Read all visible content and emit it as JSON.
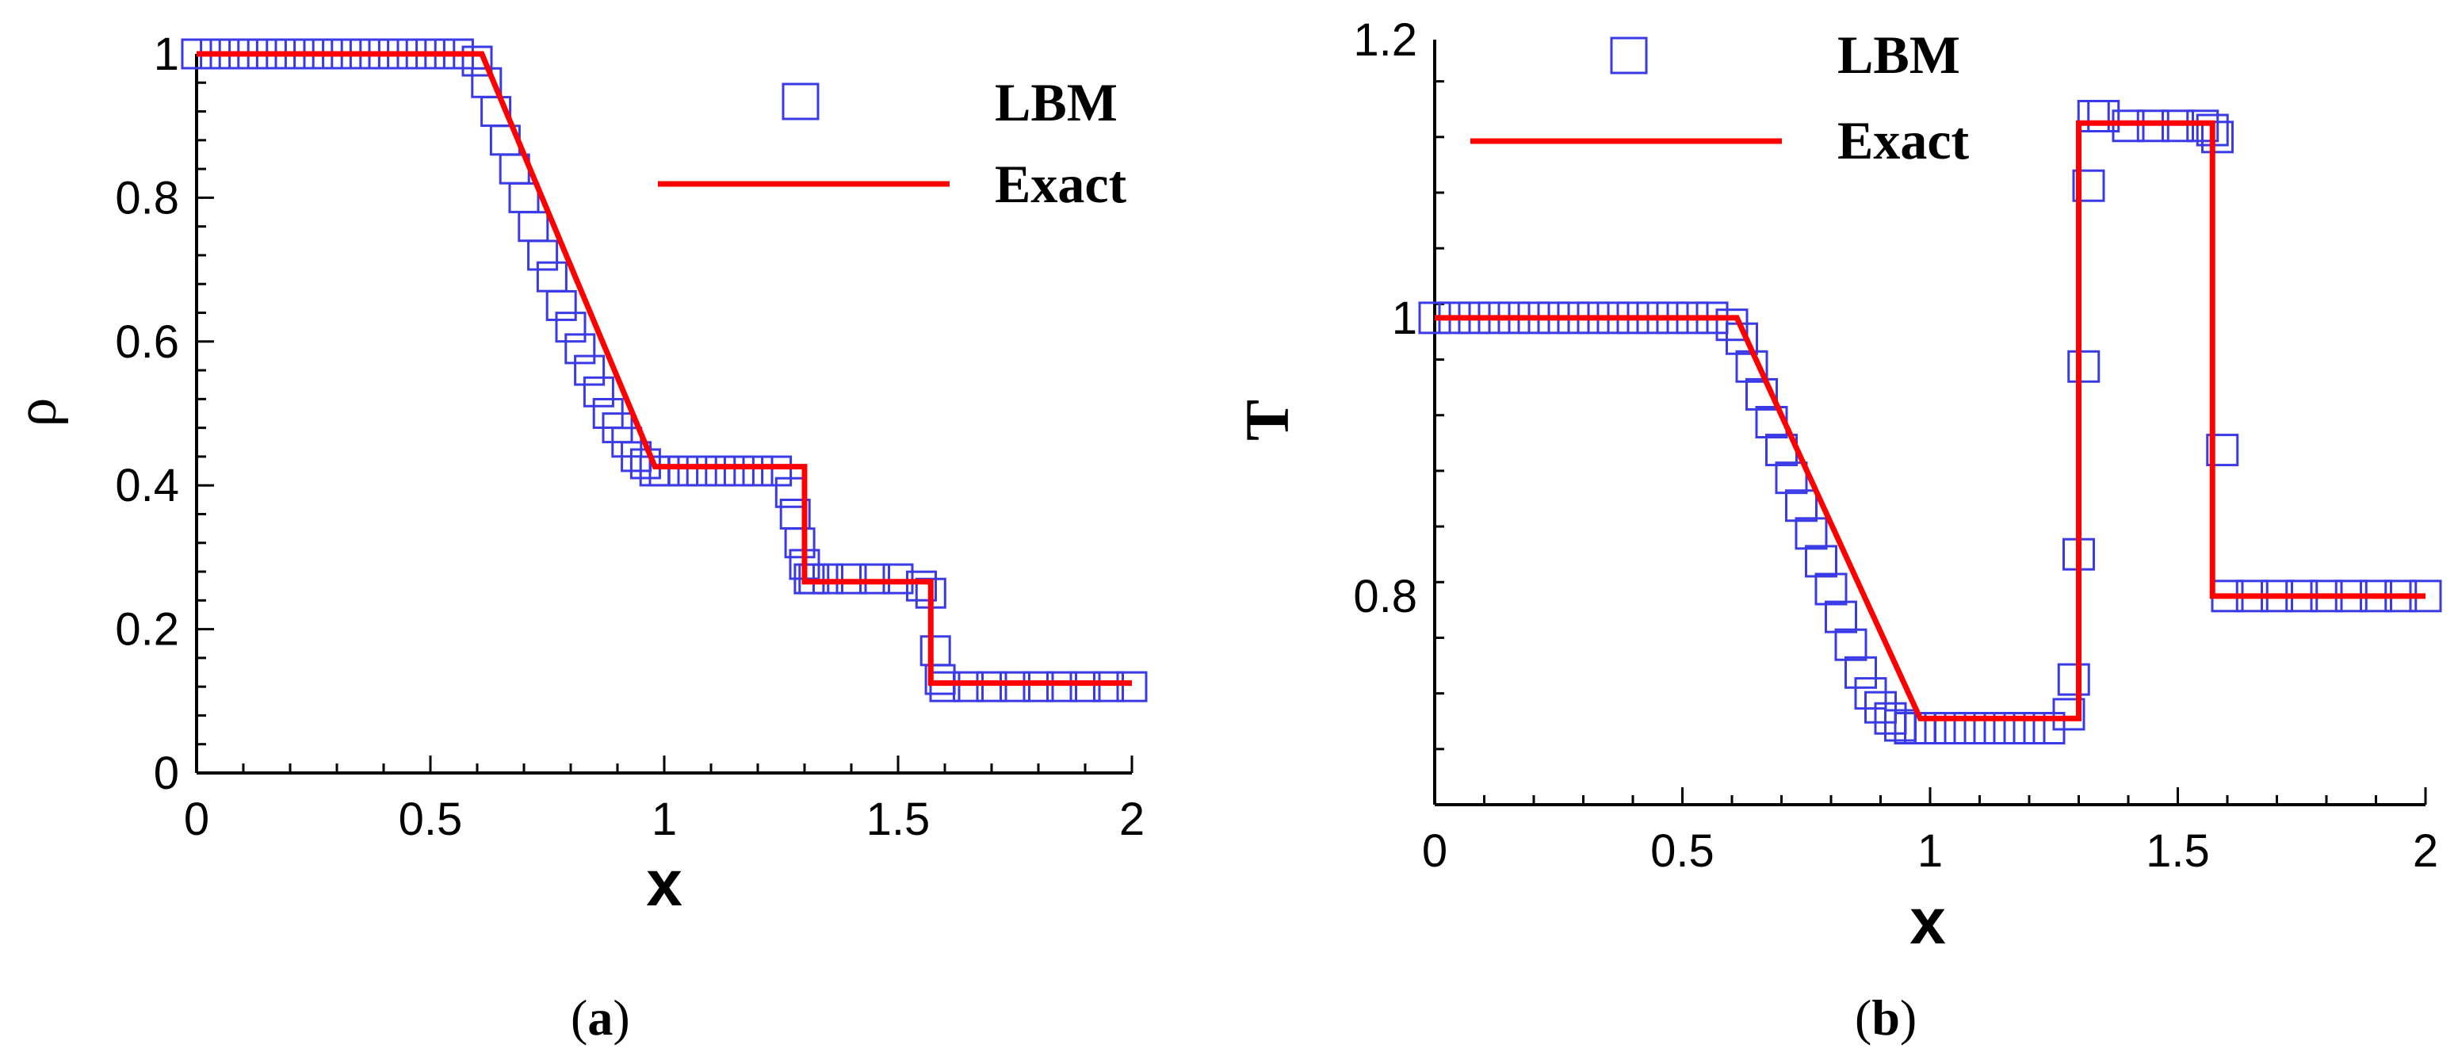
{
  "chart_data": [
    {
      "type": "line",
      "panel_label": "a",
      "xlabel": "x",
      "ylabel": "ρ",
      "xlim": [
        0,
        2
      ],
      "ylim": [
        0,
        1
      ],
      "xticks": [
        "0",
        "0.5",
        "1",
        "1.5",
        "2"
      ],
      "yticks": [
        "0",
        "0.2",
        "0.4",
        "0.6",
        "0.8",
        "1"
      ],
      "legend_position": "top-right",
      "series": [
        {
          "name": "LBM",
          "marker": "open-square",
          "color": "#3a3ae6",
          "x": [
            0.0,
            0.04,
            0.08,
            0.12,
            0.16,
            0.2,
            0.24,
            0.28,
            0.32,
            0.36,
            0.4,
            0.44,
            0.48,
            0.52,
            0.56,
            0.6,
            0.62,
            0.64,
            0.66,
            0.68,
            0.7,
            0.72,
            0.74,
            0.76,
            0.78,
            0.8,
            0.82,
            0.84,
            0.86,
            0.88,
            0.9,
            0.92,
            0.94,
            0.96,
            0.98,
            1.0,
            1.04,
            1.08,
            1.12,
            1.16,
            1.2,
            1.24,
            1.27,
            1.28,
            1.29,
            1.3,
            1.31,
            1.32,
            1.35,
            1.4,
            1.45,
            1.5,
            1.55,
            1.57,
            1.58,
            1.59,
            1.6,
            1.65,
            1.7,
            1.75,
            1.8,
            1.85,
            1.9,
            1.95,
            2.0
          ],
          "y": [
            1.0,
            1.0,
            1.0,
            1.0,
            1.0,
            1.0,
            1.0,
            1.0,
            1.0,
            1.0,
            1.0,
            1.0,
            1.0,
            1.0,
            1.0,
            0.99,
            0.96,
            0.92,
            0.88,
            0.84,
            0.8,
            0.76,
            0.72,
            0.69,
            0.65,
            0.62,
            0.59,
            0.56,
            0.53,
            0.5,
            0.48,
            0.46,
            0.44,
            0.43,
            0.42,
            0.42,
            0.42,
            0.42,
            0.42,
            0.42,
            0.42,
            0.42,
            0.39,
            0.36,
            0.32,
            0.29,
            0.27,
            0.27,
            0.27,
            0.27,
            0.27,
            0.27,
            0.26,
            0.25,
            0.17,
            0.13,
            0.12,
            0.12,
            0.12,
            0.12,
            0.12,
            0.12,
            0.12,
            0.12,
            0.12
          ]
        },
        {
          "name": "Exact",
          "color": "#ff0000",
          "x": [
            0.0,
            0.61,
            0.98,
            1.3,
            1.3,
            1.57,
            1.57,
            2.0
          ],
          "y": [
            1.0,
            1.0,
            0.426,
            0.426,
            0.266,
            0.266,
            0.125,
            0.125
          ]
        }
      ]
    },
    {
      "type": "line",
      "panel_label": "b",
      "xlabel": "x",
      "ylabel": "T",
      "xlim": [
        0,
        2
      ],
      "ylim": [
        0.65,
        1.2
      ],
      "xticks": [
        "0",
        "0.5",
        "1",
        "1.5",
        "2"
      ],
      "yticks": [
        "0.8",
        "1",
        "1.2"
      ],
      "legend_position": "top-left",
      "series": [
        {
          "name": "LBM",
          "marker": "open-square",
          "color": "#3a3ae6",
          "x": [
            0.0,
            0.04,
            0.08,
            0.12,
            0.16,
            0.2,
            0.24,
            0.28,
            0.32,
            0.36,
            0.4,
            0.44,
            0.48,
            0.52,
            0.56,
            0.6,
            0.62,
            0.64,
            0.66,
            0.68,
            0.7,
            0.72,
            0.74,
            0.76,
            0.78,
            0.8,
            0.82,
            0.84,
            0.86,
            0.88,
            0.9,
            0.92,
            0.94,
            0.96,
            0.98,
            1.0,
            1.04,
            1.08,
            1.12,
            1.16,
            1.2,
            1.24,
            1.28,
            1.29,
            1.3,
            1.31,
            1.32,
            1.33,
            1.35,
            1.4,
            1.45,
            1.5,
            1.55,
            1.57,
            1.58,
            1.59,
            1.6,
            1.65,
            1.7,
            1.75,
            1.8,
            1.85,
            1.9,
            1.95,
            2.0
          ],
          "y": [
            1.0,
            1.0,
            1.0,
            1.0,
            1.0,
            1.0,
            1.0,
            1.0,
            1.0,
            1.0,
            1.0,
            1.0,
            1.0,
            1.0,
            1.0,
            0.995,
            0.985,
            0.965,
            0.945,
            0.925,
            0.905,
            0.885,
            0.865,
            0.845,
            0.825,
            0.805,
            0.785,
            0.765,
            0.745,
            0.73,
            0.72,
            0.712,
            0.707,
            0.705,
            0.705,
            0.705,
            0.705,
            0.705,
            0.705,
            0.705,
            0.705,
            0.705,
            0.715,
            0.74,
            0.83,
            0.965,
            1.095,
            1.145,
            1.145,
            1.138,
            1.138,
            1.138,
            1.138,
            1.135,
            1.13,
            0.905,
            0.8,
            0.8,
            0.8,
            0.8,
            0.8,
            0.8,
            0.8,
            0.8,
            0.8
          ]
        },
        {
          "name": "Exact",
          "color": "#ff0000",
          "x": [
            0.0,
            0.61,
            0.98,
            1.3,
            1.3,
            1.57,
            1.57,
            2.0
          ],
          "y": [
            1.0,
            1.0,
            0.712,
            0.712,
            1.14,
            1.14,
            0.8,
            0.8
          ]
        }
      ]
    }
  ]
}
